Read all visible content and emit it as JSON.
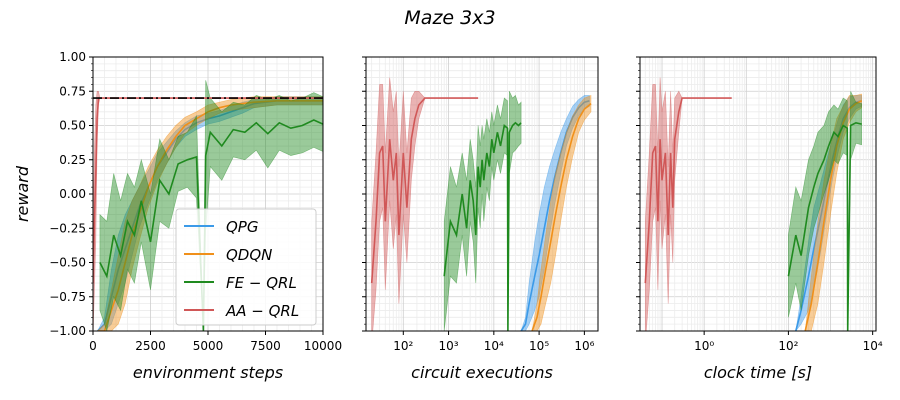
{
  "chart_data": {
    "type": "line",
    "title": "Maze 3x3",
    "ylabel": "reward",
    "ylim": [
      -1.0,
      1.0
    ],
    "yticks": [
      "1.00",
      "0.75",
      "0.50",
      "0.25",
      "0.00",
      "−0.25",
      "−0.50",
      "−0.75",
      "−1.00"
    ],
    "ytick_values": [
      1.0,
      0.75,
      0.5,
      0.25,
      0.0,
      -0.25,
      -0.5,
      -0.75,
      -1.0
    ],
    "reference_line": 0.7,
    "colors": {
      "QPG": "#3b9ae8",
      "QDQN": "#f0901a",
      "FE-QRL": "#1f8a1f",
      "AA-QRL": "#d05757",
      "reference": "#000000"
    },
    "legend": [
      "QPG",
      "QDQN",
      "FE − QRL",
      "AA − QRL"
    ],
    "legend_position": "lower-right",
    "panels": [
      {
        "xlabel": "environment steps",
        "xscale": "linear",
        "xlim": [
          0,
          10000
        ],
        "xticks": [
          "0",
          "2500",
          "5000",
          "7500",
          "10000"
        ],
        "xtick_values": [
          0,
          2500,
          5000,
          7500,
          10000
        ],
        "series": [
          {
            "name": "QPG",
            "x": [
              200,
              500,
              800,
              1100,
              1400,
              1700,
              2000,
              2400,
              2800,
              3200,
              3600,
              4000,
              4500,
              5000,
              5500,
              6000,
              6500,
              7000,
              8000,
              9000,
              10000
            ],
            "y": [
              -1.0,
              -0.95,
              -0.75,
              -0.55,
              -0.4,
              -0.25,
              -0.1,
              0.05,
              0.2,
              0.3,
              0.4,
              0.47,
              0.52,
              0.55,
              0.57,
              0.6,
              0.63,
              0.66,
              0.68,
              0.68,
              0.68
            ],
            "spread": [
              0.0,
              0.05,
              0.2,
              0.25,
              0.25,
              0.2,
              0.15,
              0.12,
              0.1,
              0.08,
              0.06,
              0.05,
              0.05,
              0.04,
              0.04,
              0.04,
              0.04,
              0.03,
              0.03,
              0.03,
              0.03
            ]
          },
          {
            "name": "QDQN",
            "x": [
              200,
              500,
              800,
              1100,
              1400,
              1700,
              2000,
              2400,
              2800,
              3200,
              3600,
              4000,
              4500,
              5000,
              5500,
              6000,
              6500,
              7000,
              8000,
              9000,
              10000
            ],
            "y": [
              -1.0,
              -1.0,
              -0.85,
              -0.7,
              -0.5,
              -0.3,
              -0.15,
              0.05,
              0.2,
              0.32,
              0.42,
              0.5,
              0.55,
              0.6,
              0.63,
              0.65,
              0.66,
              0.67,
              0.68,
              0.68,
              0.68
            ],
            "spread": [
              0.0,
              0.05,
              0.15,
              0.25,
              0.3,
              0.25,
              0.2,
              0.15,
              0.12,
              0.1,
              0.08,
              0.06,
              0.05,
              0.05,
              0.04,
              0.04,
              0.04,
              0.04,
              0.03,
              0.03,
              0.03
            ]
          },
          {
            "name": "FE − QRL",
            "x": [
              300,
              600,
              900,
              1200,
              1500,
              1800,
              2100,
              2500,
              2900,
              3300,
              3700,
              4100,
              4500,
              4800,
              4900,
              5100,
              5600,
              6100,
              6600,
              7100,
              7600,
              8100,
              8600,
              9100,
              9600,
              10000
            ],
            "y": [
              -0.5,
              -0.6,
              -0.3,
              -0.45,
              -0.2,
              -0.3,
              -0.05,
              -0.35,
              0.1,
              0.0,
              0.22,
              0.25,
              0.27,
              -1.0,
              0.28,
              0.45,
              0.35,
              0.47,
              0.45,
              0.52,
              0.44,
              0.52,
              0.48,
              0.5,
              0.54,
              0.51
            ],
            "spread": [
              0.35,
              0.4,
              0.45,
              0.4,
              0.35,
              0.35,
              0.3,
              0.35,
              0.3,
              0.25,
              0.2,
              0.2,
              0.3,
              0.0,
              0.55,
              0.25,
              0.25,
              0.2,
              0.2,
              0.2,
              0.25,
              0.2,
              0.2,
              0.2,
              0.2,
              0.2
            ]
          },
          {
            "name": "AA − QRL",
            "x": [
              0,
              60,
              120,
              180,
              240,
              300,
              400,
              600,
              800,
              1000,
              1500,
              2000,
              3000,
              4000,
              5000,
              6000,
              7000,
              8000,
              9000,
              10000
            ],
            "y": [
              -0.65,
              -0.2,
              0.15,
              0.55,
              0.7,
              0.7,
              0.7,
              0.7,
              0.7,
              0.7,
              0.7,
              0.7,
              0.7,
              0.7,
              0.7,
              0.7,
              0.7,
              0.7,
              0.7,
              0.7
            ],
            "spread": [
              0.4,
              0.5,
              0.5,
              0.2,
              0.05,
              0.0,
              0.0,
              0.0,
              0.0,
              0.0,
              0.0,
              0.0,
              0.0,
              0.0,
              0.0,
              0.0,
              0.0,
              0.0,
              0.0,
              0.0
            ]
          }
        ]
      },
      {
        "xlabel": "circuit executions",
        "xscale": "log",
        "xlim": [
          15,
          2000000
        ],
        "xticks": [
          "10²",
          "10³",
          "10⁴",
          "10⁵",
          "10⁶"
        ],
        "xtick_values": [
          100,
          1000,
          10000,
          100000,
          1000000
        ],
        "series": [
          {
            "name": "QPG",
            "x": [
              40000,
              50000,
              60000,
              80000,
              100000,
              130000,
              170000,
              220000,
              300000,
              400000,
              550000,
              750000,
              1000000,
              1300000
            ],
            "y": [
              -1.0,
              -0.95,
              -0.8,
              -0.6,
              -0.45,
              -0.25,
              -0.05,
              0.12,
              0.3,
              0.45,
              0.56,
              0.63,
              0.67,
              0.68
            ],
            "spread": [
              0.0,
              0.05,
              0.15,
              0.25,
              0.3,
              0.3,
              0.25,
              0.2,
              0.15,
              0.1,
              0.08,
              0.06,
              0.05,
              0.04
            ]
          },
          {
            "name": "QDQN",
            "x": [
              70000,
              90000,
              110000,
              140000,
              180000,
              230000,
              300000,
              400000,
              550000,
              750000,
              1000000,
              1400000
            ],
            "y": [
              -1.0,
              -0.9,
              -0.75,
              -0.55,
              -0.35,
              -0.15,
              0.05,
              0.25,
              0.42,
              0.55,
              0.62,
              0.66
            ],
            "spread": [
              0.0,
              0.1,
              0.2,
              0.25,
              0.3,
              0.3,
              0.25,
              0.2,
              0.15,
              0.1,
              0.08,
              0.06
            ]
          },
          {
            "name": "FE − QRL",
            "x": [
              800,
              1100,
              1500,
              2000,
              2500,
              3000,
              3500,
              4000,
              4500,
              5000,
              5500,
              6000,
              7000,
              8000,
              9000,
              10000,
              12000,
              14000,
              17000,
              20000,
              20500,
              22000,
              26000,
              30000,
              35000,
              40000
            ],
            "y": [
              -0.6,
              -0.2,
              -0.3,
              0.0,
              -0.25,
              0.1,
              -0.05,
              -0.3,
              0.2,
              0.05,
              0.25,
              0.1,
              0.3,
              0.2,
              0.4,
              0.3,
              0.45,
              0.35,
              0.5,
              0.48,
              -1.0,
              0.45,
              0.5,
              0.52,
              0.5,
              0.52
            ],
            "spread": [
              0.4,
              0.4,
              0.35,
              0.3,
              0.35,
              0.3,
              0.3,
              0.35,
              0.3,
              0.3,
              0.25,
              0.3,
              0.25,
              0.25,
              0.2,
              0.2,
              0.2,
              0.2,
              0.2,
              0.2,
              0.0,
              0.3,
              0.2,
              0.2,
              0.15,
              0.15
            ]
          },
          {
            "name": "AA − QRL",
            "x": [
              20,
              25,
              30,
              35,
              40,
              50,
              60,
              70,
              80,
              100,
              120,
              150,
              180,
              220,
              300,
              500,
              1000,
              2000,
              4500
            ],
            "y": [
              -0.65,
              -0.2,
              0.3,
              0.35,
              -0.2,
              0.4,
              0.1,
              0.3,
              -0.3,
              0.3,
              -0.1,
              0.4,
              0.55,
              0.65,
              0.7,
              0.7,
              0.7,
              0.7,
              0.7
            ],
            "spread": [
              0.45,
              0.5,
              0.5,
              0.45,
              0.5,
              0.45,
              0.5,
              0.45,
              0.5,
              0.45,
              0.4,
              0.3,
              0.2,
              0.1,
              0.0,
              0.0,
              0.0,
              0.0,
              0.0
            ]
          }
        ]
      },
      {
        "xlabel": "clock time [s]",
        "xscale": "log",
        "xlim": [
          0.03,
          12000
        ],
        "xticks": [
          "10⁰",
          "10²",
          "10⁴"
        ],
        "xtick_values": [
          1,
          100,
          10000
        ],
        "series": [
          {
            "name": "QPG",
            "x": [
              150,
              200,
              300,
              400,
              600,
              800,
              1100,
              1500,
              2000,
              2800,
              4000,
              5500
            ],
            "y": [
              -1.0,
              -0.85,
              -0.6,
              -0.4,
              -0.15,
              0.05,
              0.25,
              0.42,
              0.55,
              0.63,
              0.67,
              0.68
            ],
            "spread": [
              0.0,
              0.1,
              0.25,
              0.3,
              0.25,
              0.2,
              0.15,
              0.12,
              0.1,
              0.08,
              0.05,
              0.04
            ]
          },
          {
            "name": "QDQN",
            "x": [
              250,
              350,
              500,
              700,
              1000,
              1400,
              2000,
              2800,
              4000,
              5500
            ],
            "y": [
              -1.0,
              -0.8,
              -0.5,
              -0.2,
              0.1,
              0.35,
              0.52,
              0.62,
              0.66,
              0.68
            ],
            "spread": [
              0.0,
              0.2,
              0.3,
              0.3,
              0.25,
              0.2,
              0.12,
              0.1,
              0.06,
              0.05
            ]
          },
          {
            "name": "FE − QRL",
            "x": [
              100,
              150,
              200,
              300,
              400,
              500,
              700,
              900,
              1200,
              1500,
              2000,
              2500,
              2550,
              3000,
              4000,
              5500
            ],
            "y": [
              -0.6,
              -0.3,
              -0.45,
              -0.1,
              0.05,
              0.15,
              0.25,
              0.35,
              0.45,
              0.42,
              0.5,
              0.48,
              -1.0,
              0.5,
              0.52,
              0.51
            ],
            "spread": [
              0.3,
              0.35,
              0.4,
              0.35,
              0.3,
              0.3,
              0.25,
              0.25,
              0.2,
              0.2,
              0.2,
              0.2,
              0.0,
              0.25,
              0.15,
              0.15
            ]
          },
          {
            "name": "AA − QRL",
            "x": [
              0.04,
              0.05,
              0.06,
              0.07,
              0.08,
              0.09,
              0.1,
              0.12,
              0.14,
              0.16,
              0.18,
              0.2,
              0.25,
              0.3,
              0.5,
              1,
              2,
              4.5
            ],
            "y": [
              -0.65,
              -0.2,
              0.3,
              0.35,
              -0.2,
              0.4,
              0.1,
              0.3,
              -0.3,
              0.3,
              -0.1,
              0.4,
              0.6,
              0.7,
              0.7,
              0.7,
              0.7,
              0.7
            ],
            "spread": [
              0.45,
              0.5,
              0.5,
              0.45,
              0.5,
              0.45,
              0.5,
              0.45,
              0.5,
              0.45,
              0.4,
              0.3,
              0.15,
              0.0,
              0.0,
              0.0,
              0.0,
              0.0
            ]
          }
        ]
      }
    ]
  }
}
